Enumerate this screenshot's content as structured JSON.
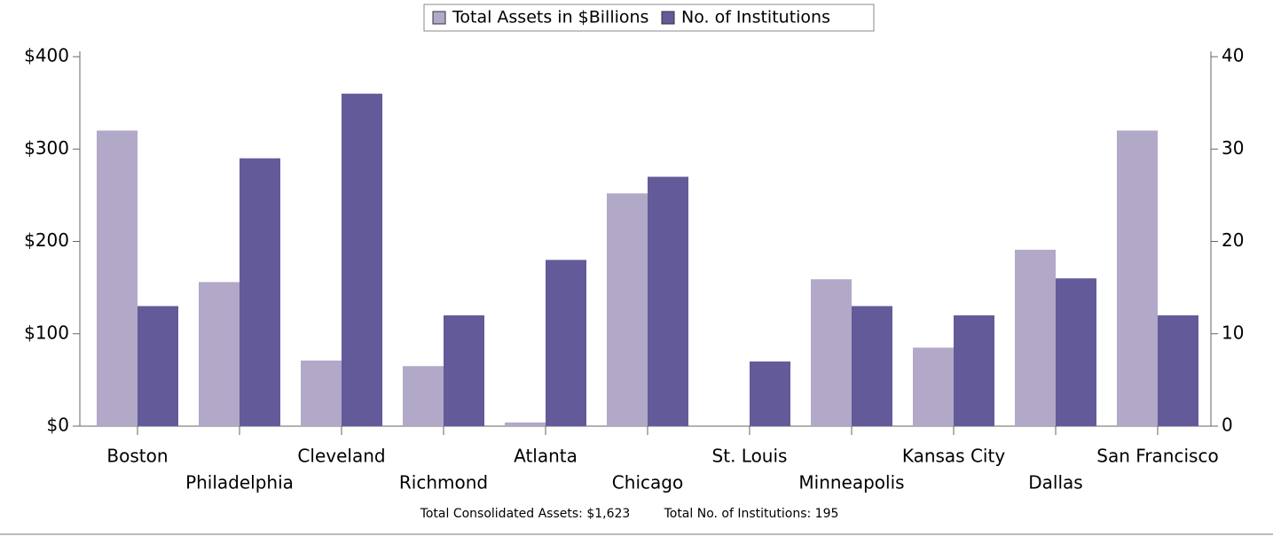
{
  "chart_data": {
    "type": "bar",
    "categories": [
      "Boston",
      "Philadelphia",
      "Cleveland",
      "Richmond",
      "Atlanta",
      "Chicago",
      "St. Louis",
      "Minneapolis",
      "Kansas City",
      "Dallas",
      "San Francisco"
    ],
    "series": [
      {
        "name": "Total Assets in $Billions",
        "color": "#b2a8c7",
        "values": [
          320,
          156,
          71,
          65,
          4,
          252,
          0,
          159,
          85,
          191,
          320
        ]
      },
      {
        "name": "No. of Institutions",
        "color": "#635b99",
        "axis": "y2",
        "values": [
          13,
          29,
          36,
          12,
          18,
          27,
          7,
          13,
          12,
          16,
          12
        ]
      }
    ],
    "ylim": [
      0,
      400
    ],
    "yticks": [
      {
        "value": 0,
        "label": "$0"
      },
      {
        "value": 100,
        "label": "$100"
      },
      {
        "value": 200,
        "label": "$200"
      },
      {
        "value": 300,
        "label": "$300"
      },
      {
        "value": 400,
        "label": "$400"
      }
    ],
    "y2lim": [
      0,
      40
    ],
    "y2ticks": [
      0,
      10,
      20,
      30,
      40
    ],
    "legend": "top",
    "annotations": [
      "Total Consolidated Assets: $1,623",
      "Total No. of Institutions: 195"
    ]
  }
}
